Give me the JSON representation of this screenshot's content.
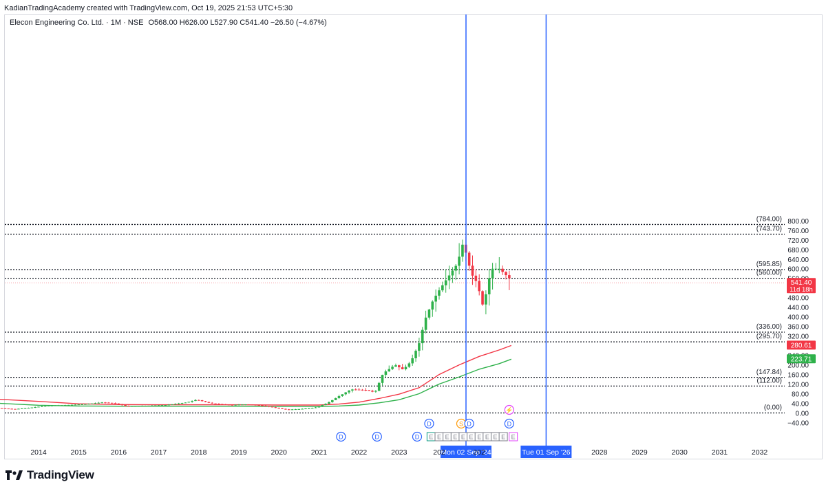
{
  "header": {
    "attribution": "KadianTradingAcademy created with TradingView.com, Oct 19, 2025 21:53 UTC+5:30"
  },
  "legend": {
    "symbol": "Elecon Engineering Co. Ltd. · 1M · NSE",
    "ohlc": "O568.00 H626.00 L527.90 C541.40 −26.50 (−4.67%)"
  },
  "footer": {
    "brand": "TradingView"
  },
  "colors": {
    "up": "#26a69a",
    "up_candle": "#2eb14a",
    "down": "#f23645",
    "ma_fast": "#f23645",
    "ma_slow": "#2eb14a",
    "vline": "#2962ff",
    "level": "#131722"
  },
  "chart_data": {
    "type": "line",
    "title": "Elecon Engineering Co. Ltd. · 1M · NSE",
    "xlabel": "",
    "ylabel": "",
    "ylim": [
      -40,
      800
    ],
    "y_ticks": [
      "800.00",
      "760.00",
      "720.00",
      "680.00",
      "640.00",
      "600.00",
      "560.00",
      "520.00",
      "480.00",
      "440.00",
      "400.00",
      "360.00",
      "320.00",
      "280.00",
      "240.00",
      "200.00",
      "160.00",
      "120.00",
      "80.00",
      "40.00",
      "0.00",
      "−40.00"
    ],
    "x_ticks": [
      {
        "label": "2014",
        "t": 2014
      },
      {
        "label": "2015",
        "t": 2015
      },
      {
        "label": "2016",
        "t": 2016
      },
      {
        "label": "2017",
        "t": 2017
      },
      {
        "label": "2018",
        "t": 2018
      },
      {
        "label": "2019",
        "t": 2019
      },
      {
        "label": "2020",
        "t": 2020
      },
      {
        "label": "2021",
        "t": 2021
      },
      {
        "label": "2022",
        "t": 2022
      },
      {
        "label": "2023",
        "t": 2023
      },
      {
        "label": "202",
        "t": 2024
      },
      {
        "label": "202",
        "t": 2025
      },
      {
        "label": "2028",
        "t": 2028
      },
      {
        "label": "2029",
        "t": 2029
      },
      {
        "label": "2030",
        "t": 2030
      },
      {
        "label": "2031",
        "t": 2031
      },
      {
        "label": "2032",
        "t": 2032
      }
    ],
    "horizontal_levels": [
      {
        "label": "(784.00)",
        "value": 784
      },
      {
        "label": "(743.70)",
        "value": 743.7
      },
      {
        "label": "(595.85)",
        "value": 595.85
      },
      {
        "label": "(560.00)",
        "value": 560
      },
      {
        "label": "(336.00)",
        "value": 336
      },
      {
        "label": "(295.70)",
        "value": 295.7
      },
      {
        "label": "(147.84)",
        "value": 147.84
      },
      {
        "label": "(112.00)",
        "value": 112
      },
      {
        "label": "(0.00)",
        "value": 0
      }
    ],
    "vertical_lines": [
      {
        "date": "2024-09-02",
        "t": 2024.67,
        "label": "Mon 02 Sep '24"
      },
      {
        "date": "2026-09-01",
        "t": 2026.67,
        "label": "Tue 01 Sep '26"
      }
    ],
    "price_badges": [
      {
        "value": 541.4,
        "text": "541.40",
        "sub": "11d 18h",
        "color": "#f23645"
      },
      {
        "value": 280.61,
        "text": "280.61",
        "color": "#f23645"
      },
      {
        "value": 223.71,
        "text": "223.71",
        "color": "#2eb14a"
      }
    ],
    "current_price": 541.4,
    "price_anchors": [
      [
        2013.0,
        20
      ],
      [
        2013.4,
        16
      ],
      [
        2013.8,
        22
      ],
      [
        2014.2,
        30
      ],
      [
        2014.7,
        33
      ],
      [
        2015.2,
        37
      ],
      [
        2015.6,
        44
      ],
      [
        2015.9,
        40
      ],
      [
        2016.2,
        28
      ],
      [
        2016.7,
        30
      ],
      [
        2017.2,
        33
      ],
      [
        2017.7,
        44
      ],
      [
        2017.95,
        55
      ],
      [
        2018.3,
        40
      ],
      [
        2018.8,
        33
      ],
      [
        2019.2,
        36
      ],
      [
        2019.6,
        30
      ],
      [
        2019.9,
        22
      ],
      [
        2020.2,
        14
      ],
      [
        2020.5,
        16
      ],
      [
        2020.9,
        22
      ],
      [
        2021.2,
        40
      ],
      [
        2021.5,
        70
      ],
      [
        2021.8,
        98
      ],
      [
        2022.2,
        95
      ],
      [
        2022.4,
        85
      ],
      [
        2022.6,
        165
      ],
      [
        2022.9,
        200
      ],
      [
        2023.1,
        180
      ],
      [
        2023.3,
        215
      ],
      [
        2023.5,
        290
      ],
      [
        2023.65,
        390
      ],
      [
        2023.85,
        470
      ],
      [
        2024.0,
        510
      ],
      [
        2024.2,
        560
      ],
      [
        2024.45,
        620
      ],
      [
        2024.6,
        710
      ],
      [
        2024.8,
        580
      ],
      [
        2024.95,
        540
      ],
      [
        2025.1,
        440
      ],
      [
        2025.3,
        600
      ],
      [
        2025.5,
        600
      ],
      [
        2025.75,
        560
      ],
      [
        2025.8,
        541.4
      ]
    ],
    "series": [
      {
        "key": "ma_fast",
        "values": [
          [
            2013,
            57
          ],
          [
            2014,
            48
          ],
          [
            2015,
            38
          ],
          [
            2016,
            35
          ],
          [
            2017,
            34
          ],
          [
            2018,
            34
          ],
          [
            2019,
            34
          ],
          [
            2020,
            33
          ],
          [
            2021,
            33
          ],
          [
            2021.5,
            37
          ],
          [
            2022,
            45
          ],
          [
            2022.5,
            60
          ],
          [
            2023,
            78
          ],
          [
            2023.5,
            105
          ],
          [
            2024,
            160
          ],
          [
            2024.5,
            200
          ],
          [
            2025,
            235
          ],
          [
            2025.5,
            262
          ],
          [
            2025.8,
            280.61
          ]
        ]
      },
      {
        "key": "ma_slow",
        "values": [
          [
            2013,
            40
          ],
          [
            2014,
            32
          ],
          [
            2015,
            29
          ],
          [
            2016,
            28
          ],
          [
            2017,
            28
          ],
          [
            2018,
            28
          ],
          [
            2019,
            28
          ],
          [
            2020,
            27
          ],
          [
            2021,
            27
          ],
          [
            2021.5,
            29
          ],
          [
            2022,
            33
          ],
          [
            2022.5,
            42
          ],
          [
            2023,
            55
          ],
          [
            2023.5,
            80
          ],
          [
            2024,
            120
          ],
          [
            2024.5,
            150
          ],
          [
            2025,
            182
          ],
          [
            2025.5,
            205
          ],
          [
            2025.8,
            223.71
          ]
        ]
      }
    ],
    "events": {
      "row1": [
        {
          "t": 2021.55,
          "g": "D"
        },
        {
          "t": 2022.45,
          "g": "D"
        },
        {
          "t": 2023.45,
          "g": "D"
        },
        {
          "t": 2023.8,
          "g": "E"
        },
        {
          "t": 2024.0,
          "g": "E"
        },
        {
          "t": 2024.2,
          "g": "E"
        },
        {
          "t": 2024.4,
          "g": "E"
        },
        {
          "t": 2024.6,
          "g": "E"
        },
        {
          "t": 2024.8,
          "g": "E"
        },
        {
          "t": 2025.0,
          "g": "E"
        },
        {
          "t": 2025.2,
          "g": "E"
        },
        {
          "t": 2025.4,
          "g": "E"
        },
        {
          "t": 2025.6,
          "g": "E"
        },
        {
          "t": 2025.85,
          "g": "E"
        }
      ],
      "row2": [
        {
          "t": 2023.75,
          "g": "D"
        },
        {
          "t": 2024.55,
          "g": "S"
        },
        {
          "t": 2024.75,
          "g": "D"
        },
        {
          "t": 2025.75,
          "g": "D"
        }
      ],
      "row3": [
        {
          "t": 2025.75,
          "g": "⚡"
        }
      ]
    }
  }
}
